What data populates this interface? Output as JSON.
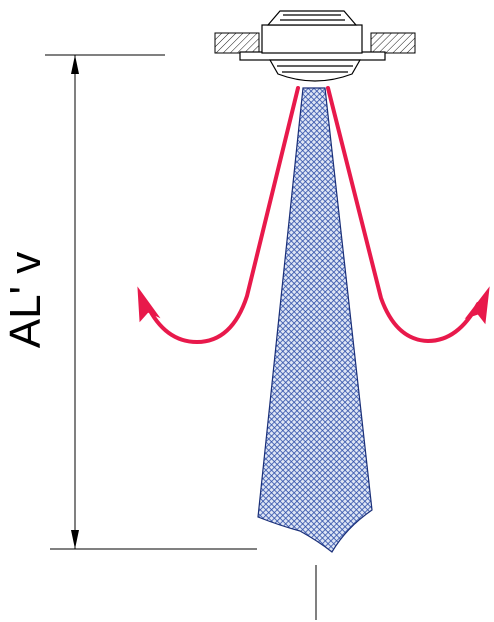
{
  "diagram": {
    "dimension_label": "AL' v",
    "colors": {
      "line": "#000000",
      "airflow_arrow": "#e8194b",
      "throw_pattern": "#2f4fa8",
      "background": "#ffffff"
    },
    "icons": {
      "diffuser": "ceiling-diffuser-icon",
      "arrow": "airflow-arrow-icon"
    }
  }
}
